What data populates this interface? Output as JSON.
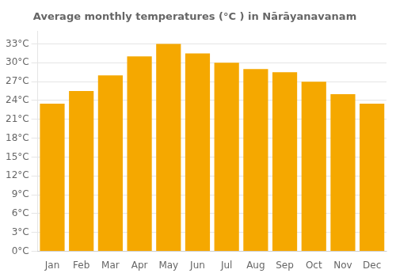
{
  "chart_data": {
    "type": "bar",
    "title": "Average monthly temperatures (°C ) in Nārāyanavanam",
    "categories": [
      "Jan",
      "Feb",
      "Mar",
      "Apr",
      "May",
      "Jun",
      "Jul",
      "Aug",
      "Sep",
      "Oct",
      "Nov",
      "Dec"
    ],
    "values": [
      23.5,
      25.5,
      28.0,
      31.0,
      33.0,
      31.5,
      30.0,
      29.0,
      28.5,
      27.0,
      25.0,
      23.5
    ],
    "color": "#F5A800",
    "ylim": [
      0,
      35
    ],
    "yticks": [
      {
        "value": 0,
        "label": "0°C"
      },
      {
        "value": 3,
        "label": "3°C"
      },
      {
        "value": 6,
        "label": "6°C"
      },
      {
        "value": 9,
        "label": "9°C"
      },
      {
        "value": 12,
        "label": "12°C"
      },
      {
        "value": 15,
        "label": "15°C"
      },
      {
        "value": 18,
        "label": "18°C"
      },
      {
        "value": 21,
        "label": "21°C"
      },
      {
        "value": 24,
        "label": "24°C"
      },
      {
        "value": 27,
        "label": "27°C"
      },
      {
        "value": 30,
        "label": "30°C"
      },
      {
        "value": 33,
        "label": "33°C"
      }
    ],
    "grid": true
  }
}
